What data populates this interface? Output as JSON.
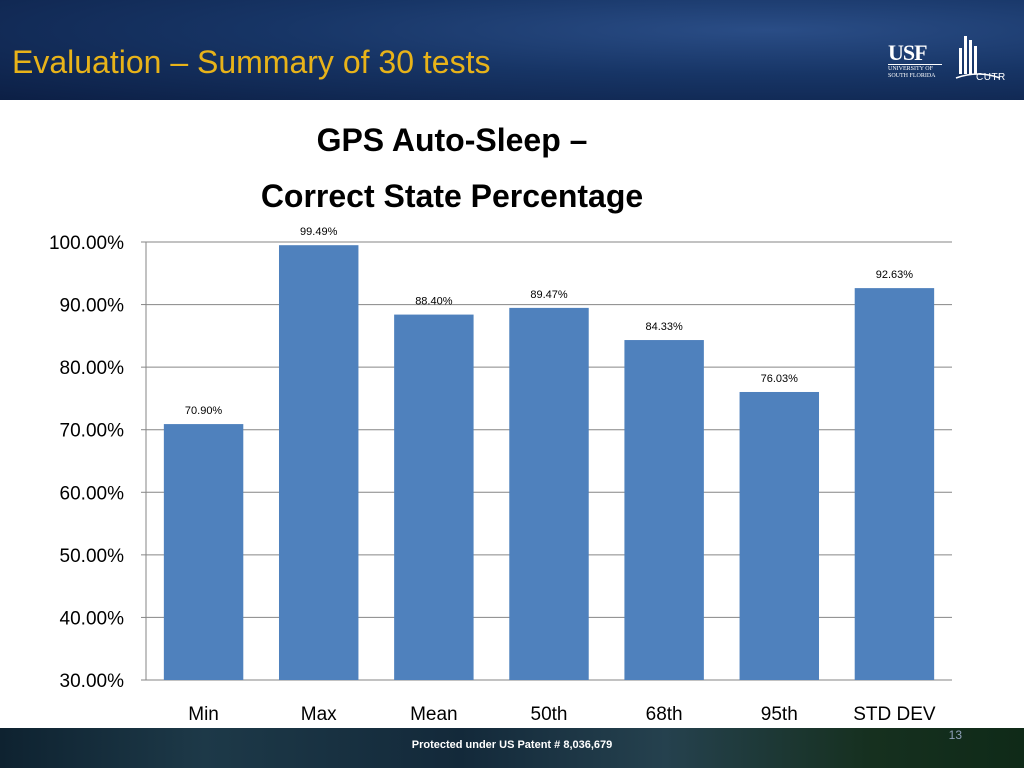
{
  "header": {
    "title": "Evaluation – Summary of 30 tests",
    "logo_text": "USF",
    "logo_subtext": "UNIVERSITY OF SOUTH FLORIDA",
    "partner_logo_text": "CUTR"
  },
  "colors": {
    "title_gold": "#e8b319",
    "bar_blue": "#4f81bd",
    "header_navy": "#173566"
  },
  "chart_data": {
    "type": "bar",
    "title_line1": "GPS Auto-Sleep –",
    "title_line2": "Correct State Percentage",
    "categories": [
      "Min",
      "Max",
      "Mean",
      "50th",
      "68th",
      "95th",
      "STD DEV"
    ],
    "values": [
      70.9,
      99.49,
      88.4,
      89.47,
      84.33,
      76.03,
      92.63
    ],
    "data_labels": [
      "70.90%",
      "99.49%",
      "88.40%",
      "89.47%",
      "84.33%",
      "76.03%",
      "92.63%"
    ],
    "ylim": [
      30,
      100
    ],
    "yticks": [
      30,
      40,
      50,
      60,
      70,
      80,
      90,
      100
    ],
    "ytick_labels": [
      "30.00%",
      "40.00%",
      "50.00%",
      "60.00%",
      "70.00%",
      "80.00%",
      "90.00%",
      "100.00%"
    ],
    "grid": true,
    "legend": "none"
  },
  "footer": {
    "patent_text": "Protected under US Patent # 8,036,679",
    "page_number": "13"
  }
}
